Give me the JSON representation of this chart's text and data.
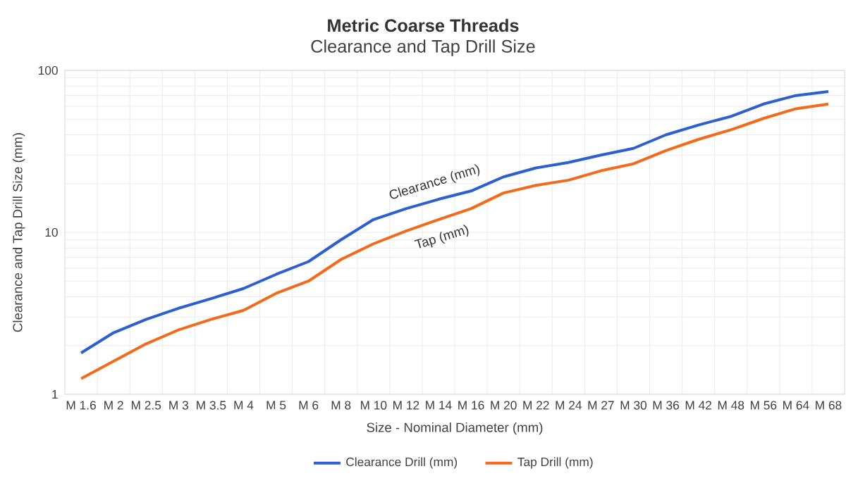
{
  "chart_data": {
    "type": "line",
    "title": "Metric Coarse Threads",
    "subtitle": "Clearance and Tap Drill Size",
    "xlabel": "Size - Nominal Diameter (mm)",
    "ylabel": "Clearance and Tap Drill Size (mm)",
    "categories": [
      "M 1.6",
      "M 2",
      "M 2.5",
      "M 3",
      "M 3.5",
      "M 4",
      "M 5",
      "M 6",
      "M 8",
      "M 10",
      "M 12",
      "M 14",
      "M 16",
      "M 20",
      "M 22",
      "M 24",
      "M 27",
      "M 30",
      "M 36",
      "M 42",
      "M 48",
      "M 56",
      "M 64",
      "M 68"
    ],
    "series": [
      {
        "name": "Clearance Drill (mm)",
        "color": "#2e5fcf",
        "values": [
          1.8,
          2.4,
          2.9,
          3.4,
          3.9,
          4.5,
          5.5,
          6.6,
          9,
          12,
          14,
          16,
          18,
          22,
          25,
          27,
          30,
          33,
          40,
          46,
          52,
          62,
          70,
          74
        ]
      },
      {
        "name": "Tap Drill (mm)",
        "color": "#f26b1d",
        "values": [
          1.25,
          1.6,
          2.05,
          2.5,
          2.9,
          3.3,
          4.2,
          5.0,
          6.8,
          8.5,
          10.2,
          12,
          14,
          17.5,
          19.5,
          21,
          24,
          26.5,
          32,
          37.5,
          43,
          50.5,
          58,
          62
        ]
      }
    ],
    "annotations": [
      {
        "text": "Clearance (mm)",
        "x": "M 14",
        "y": 17
      },
      {
        "text": "Tap (mm)",
        "x": "M 14",
        "y": 11
      }
    ],
    "ylim": [
      1,
      100
    ],
    "yticks": [
      1,
      10,
      100
    ],
    "log": "y",
    "grid": true,
    "legend": "bottom",
    "marker": "none",
    "line_style": "solid"
  }
}
